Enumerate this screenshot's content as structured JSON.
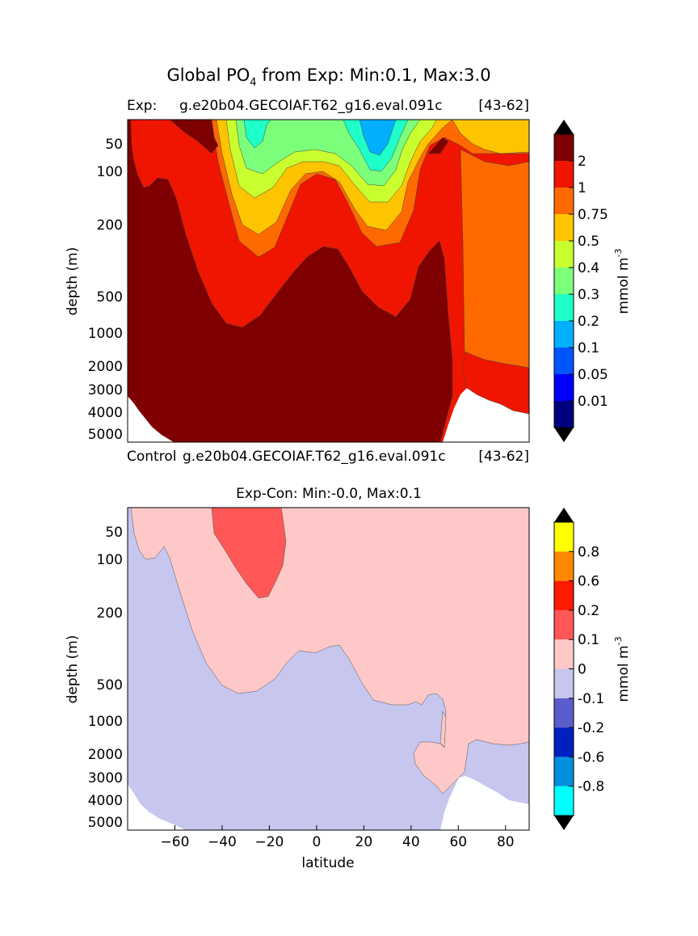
{
  "title": "Global PO",
  "title_sub": "4",
  "title_rest": " from Exp: Min:0.1, Max:3.0",
  "chart_data": [
    {
      "type": "contour",
      "header_left": "Exp:",
      "header_mid": "g.e20b04.GECOIAF.T62_g16.eval.091c",
      "header_right": "[43-62]",
      "footer_left": "Control",
      "footer_mid": "g.e20b04.GECOIAF.T62_g16.eval.091c",
      "footer_right": "[43-62]",
      "ylabel": "depth (m)",
      "y_ticks": [
        "50",
        "100",
        "200",
        "500",
        "1000",
        "2000",
        "3000",
        "4000",
        "5000"
      ],
      "x_range": [
        -80,
        90
      ],
      "cbar_label": "mmol m",
      "cbar_label_sup": "-3",
      "levels": [
        "0.01",
        "0.05",
        "0.1",
        "0.2",
        "0.3",
        "0.4",
        "0.5",
        "0.75",
        "1",
        "2"
      ],
      "colors": [
        "#00007f",
        "#0000ff",
        "#0055ff",
        "#00b0ff",
        "#1fffc9",
        "#7cff7a",
        "#c9ff2e",
        "#ffc400",
        "#ff6a00",
        "#f01500",
        "#7f0000"
      ],
      "extend_colors": [
        "#000000",
        "#000000"
      ]
    },
    {
      "type": "contour",
      "title": "Exp-Con: Min:-0.0, Max:0.1",
      "ylabel": "depth (m)",
      "xlabel": "latitude",
      "y_ticks": [
        "50",
        "100",
        "200",
        "500",
        "1000",
        "2000",
        "3000",
        "4000",
        "5000"
      ],
      "x_ticks": [
        "-60",
        "-40",
        "-20",
        "0",
        "20",
        "40",
        "60",
        "80"
      ],
      "x_range": [
        -80,
        90
      ],
      "cbar_label": "mmol m",
      "cbar_label_sup": "-3",
      "levels": [
        "-0.8",
        "-0.6",
        "-0.2",
        "-0.1",
        "0",
        "0.1",
        "0.2",
        "0.6",
        "0.8"
      ],
      "colors": [
        "#00ffff",
        "#0090dd",
        "#0020c0",
        "#5c5ccc",
        "#c6c6ee",
        "#ffc8c8",
        "#ff5757",
        "#ff1a00",
        "#ff8800",
        "#ffff00"
      ],
      "extend_colors": [
        "#000000",
        "#000000"
      ]
    }
  ]
}
